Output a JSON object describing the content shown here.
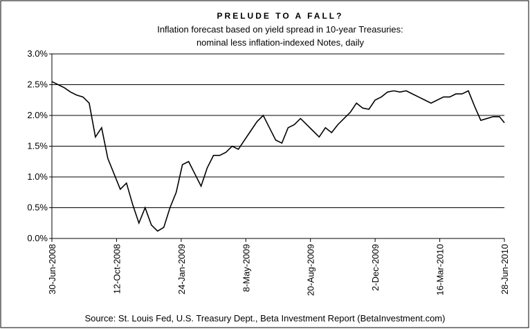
{
  "chart_data": {
    "type": "line",
    "title": "PRELUDE TO A FALL?",
    "subtitle": [
      "Inflation forecast based on yield spread in 10-year Treasuries:",
      "nominal less inflation-indexed Notes, daily"
    ],
    "source": "Source: St. Louis Fed, U.S. Treasury Dept., Beta Investment Report (BetaInvestment.com)",
    "x": [
      "30-Jun-2008",
      "10-Jul-2008",
      "20-Jul-2008",
      "30-Jul-2008",
      "9-Aug-2008",
      "19-Aug-2008",
      "29-Aug-2008",
      "8-Sep-2008",
      "18-Sep-2008",
      "28-Sep-2008",
      "8-Oct-2008",
      "18-Oct-2008",
      "28-Oct-2008",
      "7-Nov-2008",
      "17-Nov-2008",
      "27-Nov-2008",
      "7-Dec-2008",
      "17-Dec-2008",
      "27-Dec-2008",
      "6-Jan-2009",
      "16-Jan-2009",
      "26-Jan-2009",
      "5-Feb-2009",
      "15-Feb-2009",
      "25-Feb-2009",
      "7-Mar-2009",
      "17-Mar-2009",
      "27-Mar-2009",
      "6-Apr-2009",
      "16-Apr-2009",
      "26-Apr-2009",
      "6-May-2009",
      "16-May-2009",
      "26-May-2009",
      "5-Jun-2009",
      "15-Jun-2009",
      "25-Jun-2009",
      "5-Jul-2009",
      "15-Jul-2009",
      "25-Jul-2009",
      "4-Aug-2009",
      "14-Aug-2009",
      "24-Aug-2009",
      "3-Sep-2009",
      "13-Sep-2009",
      "23-Sep-2009",
      "3-Oct-2009",
      "13-Oct-2009",
      "23-Oct-2009",
      "2-Nov-2009",
      "12-Nov-2009",
      "22-Nov-2009",
      "2-Dec-2009",
      "12-Dec-2009",
      "22-Dec-2009",
      "1-Jan-2010",
      "11-Jan-2010",
      "21-Jan-2010",
      "31-Jan-2010",
      "10-Feb-2010",
      "20-Feb-2010",
      "2-Mar-2010",
      "12-Mar-2010",
      "22-Mar-2010",
      "1-Apr-2010",
      "11-Apr-2010",
      "21-Apr-2010",
      "1-May-2010",
      "11-May-2010",
      "21-May-2010",
      "31-May-2010",
      "10-Jun-2010",
      "20-Jun-2010",
      "28-Jun-2010"
    ],
    "series": [
      {
        "color": "#000000",
        "values": [
          2.55,
          2.5,
          2.45,
          2.38,
          2.33,
          2.3,
          2.2,
          1.65,
          1.8,
          1.3,
          1.05,
          0.8,
          0.9,
          0.55,
          0.25,
          0.5,
          0.22,
          0.12,
          0.18,
          0.5,
          0.75,
          1.2,
          1.25,
          1.05,
          0.85,
          1.15,
          1.35,
          1.35,
          1.4,
          1.5,
          1.45,
          1.6,
          1.75,
          1.9,
          2.0,
          1.8,
          1.6,
          1.55,
          1.8,
          1.85,
          1.95,
          1.85,
          1.75,
          1.65,
          1.8,
          1.72,
          1.85,
          1.95,
          2.05,
          2.2,
          2.12,
          2.1,
          2.25,
          2.3,
          2.38,
          2.4,
          2.38,
          2.4,
          2.35,
          2.3,
          2.25,
          2.2,
          2.25,
          2.3,
          2.3,
          2.35,
          2.35,
          2.4,
          2.15,
          1.92,
          1.95,
          1.98,
          1.98,
          1.88
        ]
      }
    ],
    "xlim": [
      "30-Jun-2008",
      "28-Jun-2010"
    ],
    "xticks": [
      "30-Jun-2008",
      "12-Oct-2008",
      "24-Jan-2009",
      "8-May-2009",
      "20-Aug-2009",
      "2-Dec-2009",
      "16-Mar-2010",
      "28-Jun-2010"
    ],
    "ylim": [
      0,
      3
    ],
    "yticks": [
      {
        "value": 0,
        "label": "0.0%"
      },
      {
        "value": 0.5,
        "label": "0.5%"
      },
      {
        "value": 1,
        "label": "1.0%"
      },
      {
        "value": 1.5,
        "label": "1.5%"
      },
      {
        "value": 2,
        "label": "2.0%"
      },
      {
        "value": 2.5,
        "label": "2.5%"
      },
      {
        "value": 3,
        "label": "3.0%"
      }
    ],
    "grid": true
  }
}
